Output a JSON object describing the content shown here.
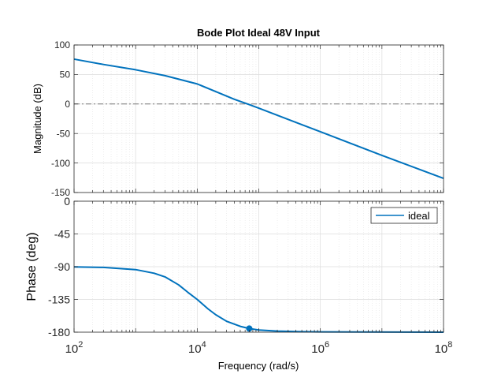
{
  "chart_data": {
    "type": "line",
    "title": "Bode Plot Ideal 48V Input",
    "xlabel": "Frequency  (rad/s)",
    "x_scale": "log",
    "xlim": [
      100,
      100000000
    ],
    "x_ticks": [
      {
        "value": 100,
        "base": "10",
        "exp": "2"
      },
      {
        "value": 10000,
        "base": "10",
        "exp": "4"
      },
      {
        "value": 1000000,
        "base": "10",
        "exp": "6"
      },
      {
        "value": 100000000,
        "base": "10",
        "exp": "8"
      }
    ],
    "grid": true,
    "line_color": "#0072BD",
    "magnitude": {
      "ylabel": "Magnitude (dB)",
      "ylim": [
        -150,
        100
      ],
      "y_ticks": [
        "100",
        "50",
        "0",
        "-50",
        "-100",
        "-150"
      ],
      "reference_line": 0,
      "series": [
        {
          "x": [
            100,
            300,
            1000,
            3000,
            10000,
            20000,
            40000,
            70000,
            100000,
            1000000,
            10000000,
            100000000
          ],
          "y": [
            76,
            67,
            58,
            48,
            34,
            21,
            8,
            -1,
            -7,
            -47,
            -87,
            -126
          ]
        }
      ]
    },
    "phase": {
      "ylabel": "Phase (deg)",
      "ylim": [
        -180,
        0
      ],
      "y_ticks": [
        "0",
        "-45",
        "-90",
        "-135",
        "-180"
      ],
      "legend": {
        "position": "top-right",
        "entries": [
          "ideal"
        ]
      },
      "series": [
        {
          "name": "ideal",
          "x": [
            100,
            300,
            1000,
            2000,
            3000,
            5000,
            7000,
            10000,
            15000,
            20000,
            30000,
            50000,
            70000,
            100000,
            200000,
            500000,
            1000000,
            100000000
          ],
          "y": [
            -90.3,
            -91,
            -94,
            -99,
            -104,
            -115,
            -125,
            -135,
            -148,
            -156,
            -165,
            -172,
            -175,
            -177,
            -178.5,
            -179.3,
            -179.6,
            -180
          ]
        }
      ],
      "marker": {
        "x": 70000,
        "y": -175
      }
    }
  }
}
